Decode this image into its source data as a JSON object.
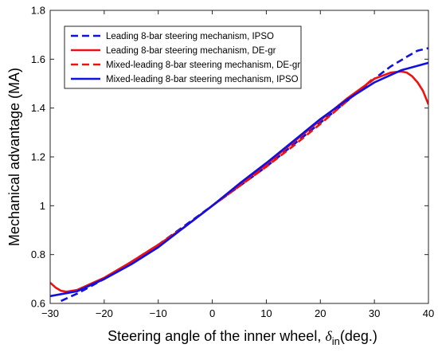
{
  "chart_data": {
    "type": "line",
    "xlabel_main": "Steering angle of the inner wheel, ",
    "xlabel_symbol": "δ",
    "xlabel_sub": "in",
    "xlabel_unit": "(deg.)",
    "ylabel": "Mechanical advantage (MA)",
    "xlim": [
      -30,
      40
    ],
    "ylim": [
      0.6,
      1.8
    ],
    "xticks": [
      -30,
      -20,
      -10,
      0,
      10,
      20,
      30,
      40
    ],
    "xtick_labels": [
      "−30",
      "−20",
      "−10",
      "0",
      "10",
      "20",
      "30",
      "40"
    ],
    "yticks": [
      0.6,
      0.8,
      1.0,
      1.2,
      1.4,
      1.6,
      1.8
    ],
    "ytick_labels": [
      "0.6",
      "0.8",
      "1",
      "1.2",
      "1.4",
      "1.6",
      "1.8"
    ],
    "grid": false,
    "legend_position": "top-left",
    "series": [
      {
        "name": "Leading 8-bar steering mechanism, IPSO",
        "color": "#1010e0",
        "dash": "dashed",
        "x": [
          -28,
          -25,
          -20,
          -15,
          -10,
          -5,
          0,
          5,
          10,
          15,
          20,
          25,
          30,
          33,
          36,
          38,
          40
        ],
        "y": [
          0.61,
          0.64,
          0.7,
          0.77,
          0.84,
          0.92,
          1.0,
          1.08,
          1.16,
          1.25,
          1.34,
          1.43,
          1.52,
          1.57,
          1.61,
          1.635,
          1.645
        ]
      },
      {
        "name": "Leading 8-bar steering mechanism, DE-gr",
        "color": "#ee1111",
        "dash": "solid",
        "x": [
          -30,
          -29,
          -28,
          -27,
          -25,
          -20,
          -15,
          -10,
          -5,
          0,
          5,
          10,
          15,
          20,
          25,
          30,
          33,
          35,
          36,
          37,
          38,
          39,
          40
        ],
        "y": [
          0.685,
          0.665,
          0.652,
          0.648,
          0.655,
          0.705,
          0.77,
          0.84,
          0.915,
          1.0,
          1.085,
          1.17,
          1.26,
          1.35,
          1.44,
          1.52,
          1.545,
          1.55,
          1.545,
          1.53,
          1.505,
          1.47,
          1.415
        ]
      },
      {
        "name": "Mixed-leading 8-bar steering mechanism, DE-gr",
        "color": "#ee1111",
        "dash": "dashed",
        "x": [
          -25,
          -20,
          -15,
          -10,
          -5,
          0,
          5,
          10,
          15,
          20,
          25,
          30
        ],
        "y": [
          0.65,
          0.7,
          0.765,
          0.835,
          0.915,
          1.0,
          1.08,
          1.16,
          1.245,
          1.335,
          1.43,
          1.525
        ]
      },
      {
        "name": "Mixed-leading 8-bar steering mechanism, IPSO",
        "color": "#1010e0",
        "dash": "solid",
        "x": [
          -30,
          -25,
          -20,
          -15,
          -10,
          -5,
          0,
          5,
          10,
          15,
          20,
          25,
          30,
          35,
          40
        ],
        "y": [
          0.63,
          0.65,
          0.7,
          0.76,
          0.83,
          0.915,
          1.0,
          1.09,
          1.175,
          1.265,
          1.355,
          1.435,
          1.505,
          1.555,
          1.585
        ]
      }
    ]
  }
}
